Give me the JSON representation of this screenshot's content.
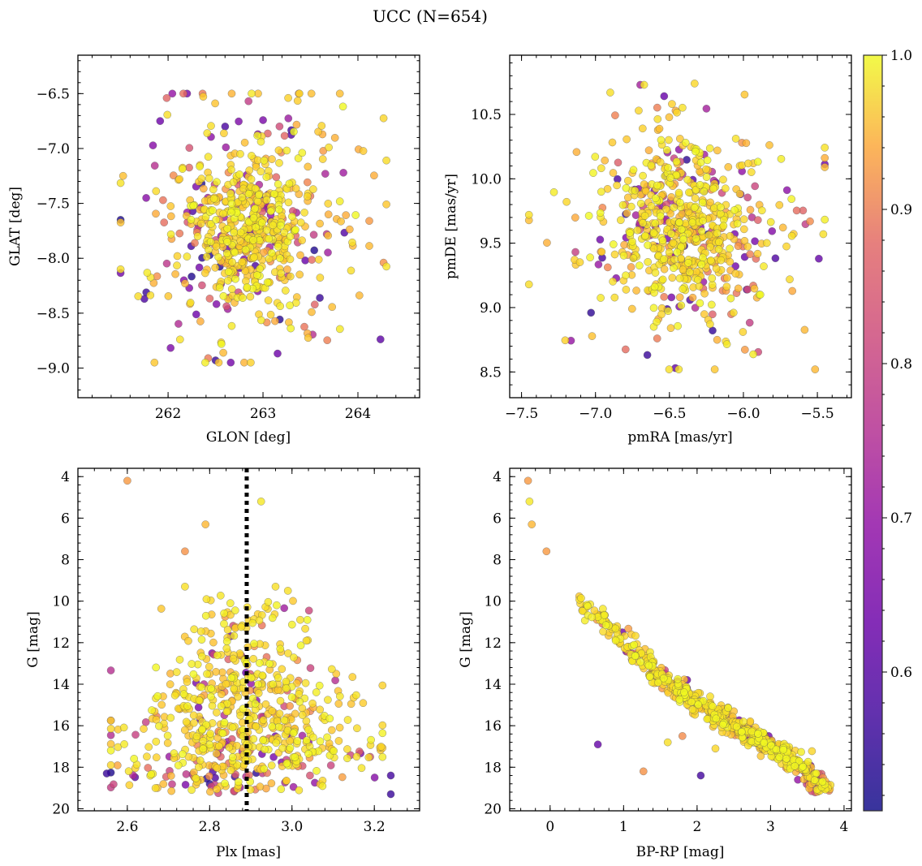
{
  "figure": {
    "title": "UCC (N=654)",
    "n_members": 654,
    "colormap": "plasma",
    "point_alpha": 0.8,
    "point_edge_color": "#555555"
  },
  "colorbar": {
    "label": "",
    "range": [
      0.51,
      1.0
    ],
    "ticks": [
      0.6,
      0.7,
      0.8,
      0.9,
      1.0
    ],
    "tick_labels": [
      "0.6",
      "0.7",
      "0.8",
      "0.9",
      "1.0"
    ]
  },
  "chart_data": [
    {
      "id": "glon-glat",
      "type": "scatter",
      "title": "",
      "xlabel": "GLON [deg]",
      "ylabel": "GLAT [deg]",
      "xlim": [
        261.05,
        264.65
      ],
      "ylim": [
        -9.27,
        -6.15
      ],
      "y_inverted": false,
      "xticks": [
        262,
        263,
        264
      ],
      "xtick_labels": [
        "262",
        "263",
        "264"
      ],
      "yticks": [
        -9.0,
        -8.5,
        -8.0,
        -7.5,
        -7.0,
        -6.5
      ],
      "ytick_labels": [
        "−9.0",
        "−8.5",
        "−8.0",
        "−7.5",
        "−7.0",
        "−6.5"
      ],
      "distribution": {
        "kind": "cluster2d",
        "center": [
          262.85,
          -7.72
        ],
        "core_sd": [
          0.28,
          0.3
        ],
        "halo_sd": [
          0.6,
          0.65
        ],
        "core_fraction": 0.55,
        "x_bounds": [
          261.5,
          264.3
        ],
        "y_bounds": [
          -8.95,
          -6.5
        ]
      },
      "highlighted_points": [
        {
          "x": 261.5,
          "y": -8.1,
          "p": 0.97
        },
        {
          "x": 262.88,
          "y": -6.5,
          "p": 0.98
        },
        {
          "x": 264.27,
          "y": -8.04,
          "p": 0.87
        },
        {
          "x": 262.5,
          "y": -8.93,
          "p": 0.55
        },
        {
          "x": 262.2,
          "y": -6.5,
          "p": 0.62
        },
        {
          "x": 264.12,
          "y": -7.66,
          "p": 0.88
        },
        {
          "x": 261.77,
          "y": -8.31,
          "p": 0.55
        },
        {
          "x": 261.75,
          "y": -8.37,
          "p": 0.57
        }
      ]
    },
    {
      "id": "pmra-pmde",
      "type": "scatter",
      "title": "",
      "xlabel": "pmRA [mas/yr]",
      "ylabel": "pmDE [mas/yr]",
      "xlim": [
        -7.58,
        -5.27
      ],
      "ylim": [
        8.3,
        10.96
      ],
      "y_inverted": false,
      "xticks": [
        -7.5,
        -7.0,
        -6.5,
        -6.0,
        -5.5
      ],
      "xtick_labels": [
        "−7.5",
        "−7.0",
        "−6.5",
        "−6.0",
        "−5.5"
      ],
      "yticks": [
        8.5,
        9.0,
        9.5,
        10.0,
        10.5
      ],
      "ytick_labels": [
        "8.5",
        "9.0",
        "9.5",
        "10.0",
        "10.5"
      ],
      "distribution": {
        "kind": "cluster2d",
        "center": [
          -6.42,
          9.62
        ],
        "core_sd": [
          0.22,
          0.32
        ],
        "halo_sd": [
          0.42,
          0.5
        ],
        "core_fraction": 0.6,
        "x_bounds": [
          -7.45,
          -5.45
        ],
        "y_bounds": [
          8.52,
          10.73
        ]
      },
      "highlighted_points": [
        {
          "x": -6.9,
          "y": 10.67,
          "p": 0.97
        },
        {
          "x": -6.33,
          "y": 10.74,
          "p": 0.96
        },
        {
          "x": -5.46,
          "y": 9.57,
          "p": 0.97
        },
        {
          "x": -5.49,
          "y": 9.38,
          "p": 0.6
        },
        {
          "x": -7.03,
          "y": 8.96,
          "p": 0.54
        },
        {
          "x": -6.46,
          "y": 8.53,
          "p": 0.6
        },
        {
          "x": -5.55,
          "y": 9.67,
          "p": 0.86
        },
        {
          "x": -7.45,
          "y": 9.72,
          "p": 0.97
        }
      ]
    },
    {
      "id": "plx-g",
      "type": "scatter",
      "title": "",
      "xlabel": "Plx [mas]",
      "ylabel": "G [mag]",
      "xlim": [
        2.48,
        3.31
      ],
      "ylim": [
        3.6,
        20.1
      ],
      "y_inverted": true,
      "xticks": [
        2.6,
        2.8,
        3.0,
        3.2
      ],
      "xtick_labels": [
        "2.6",
        "2.8",
        "3.0",
        "3.2"
      ],
      "yticks": [
        4,
        6,
        8,
        10,
        12,
        14,
        16,
        18,
        20
      ],
      "ytick_labels": [
        "4",
        "6",
        "8",
        "10",
        "12",
        "14",
        "16",
        "18",
        "20"
      ],
      "reference_line": {
        "axis": "x",
        "value": 2.89,
        "style": "dotted",
        "color": "#000000"
      },
      "highlighted_points": [
        {
          "x": 2.6,
          "y": 4.2,
          "p": 0.88
        },
        {
          "x": 2.925,
          "y": 5.2,
          "p": 0.98
        },
        {
          "x": 2.79,
          "y": 6.3,
          "p": 0.92
        },
        {
          "x": 2.74,
          "y": 7.6,
          "p": 0.87
        },
        {
          "x": 2.55,
          "y": 18.3,
          "p": 0.55
        },
        {
          "x": 3.24,
          "y": 18.4,
          "p": 0.56
        },
        {
          "x": 3.19,
          "y": 17.5,
          "p": 0.77
        },
        {
          "x": 3.24,
          "y": 19.3,
          "p": 0.55
        },
        {
          "x": 2.74,
          "y": 9.3,
          "p": 0.97
        },
        {
          "x": 2.96,
          "y": 9.3,
          "p": 0.97
        },
        {
          "x": 2.99,
          "y": 9.5,
          "p": 0.97
        },
        {
          "x": 3.02,
          "y": 10.9,
          "p": 0.97
        }
      ]
    },
    {
      "id": "bprp-g",
      "type": "scatter",
      "title": "",
      "xlabel": "BP-RP [mag]",
      "ylabel": "G [mag]",
      "xlim": [
        -0.55,
        4.1
      ],
      "ylim": [
        3.6,
        20.1
      ],
      "y_inverted": true,
      "xticks": [
        0,
        1,
        2,
        3,
        4
      ],
      "xtick_labels": [
        "0",
        "1",
        "2",
        "3",
        "4"
      ],
      "yticks": [
        4,
        6,
        8,
        10,
        12,
        14,
        16,
        18,
        20
      ],
      "ytick_labels": [
        "4",
        "6",
        "8",
        "10",
        "12",
        "14",
        "16",
        "18",
        "20"
      ],
      "sequence": [
        [
          -0.3,
          4.2
        ],
        [
          0.0,
          8.6
        ],
        [
          0.5,
          10.3
        ],
        [
          1.0,
          12.0
        ],
        [
          1.5,
          13.6
        ],
        [
          2.0,
          14.9
        ],
        [
          2.5,
          16.0
        ],
        [
          3.0,
          17.0
        ],
        [
          3.5,
          18.2
        ],
        [
          3.75,
          19.0
        ]
      ],
      "highlighted_points": [
        {
          "x": -0.3,
          "y": 4.2,
          "p": 0.88
        },
        {
          "x": -0.28,
          "y": 5.2,
          "p": 0.98
        },
        {
          "x": -0.25,
          "y": 6.3,
          "p": 0.92
        },
        {
          "x": -0.05,
          "y": 7.6,
          "p": 0.88
        },
        {
          "x": 0.65,
          "y": 16.9,
          "p": 0.6
        },
        {
          "x": 1.27,
          "y": 18.2,
          "p": 0.87
        },
        {
          "x": 1.6,
          "y": 16.8,
          "p": 0.97
        },
        {
          "x": 1.8,
          "y": 16.5,
          "p": 0.86
        },
        {
          "x": 2.05,
          "y": 18.4,
          "p": 0.56
        },
        {
          "x": 2.25,
          "y": 17.1,
          "p": 0.96
        }
      ]
    }
  ]
}
